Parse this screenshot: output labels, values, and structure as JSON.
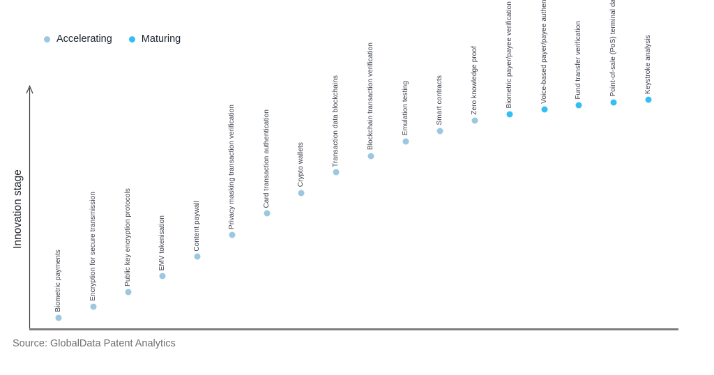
{
  "legend": {
    "items": [
      {
        "label": "Accelerating",
        "color": "#9cc7e0"
      },
      {
        "label": "Maturing",
        "color": "#33bff2"
      }
    ]
  },
  "source": {
    "text": "Source: GlobalData Patent Analytics"
  },
  "chart_data": {
    "type": "scatter",
    "title": "",
    "xlabel": "",
    "ylabel": "Innovation stage",
    "grid": false,
    "legend_position": "top-left",
    "x_axis": {
      "tick_labels_visible": false
    },
    "y_axis": {
      "min": 0,
      "max": 100,
      "tick_labels_visible": false,
      "arrow": true
    },
    "series_meta": [
      {
        "name": "Accelerating",
        "color": "#9cc7e0"
      },
      {
        "name": "Maturing",
        "color": "#33bff2"
      }
    ],
    "points": [
      {
        "label": "Biometric payments",
        "stage": 4.6,
        "series": "Accelerating"
      },
      {
        "label": "Encryption for secure transmission",
        "stage": 9.2,
        "series": "Accelerating"
      },
      {
        "label": "Public key encryption protocols",
        "stage": 15.2,
        "series": "Accelerating"
      },
      {
        "label": "EMV tokenisation",
        "stage": 21.8,
        "series": "Accelerating"
      },
      {
        "label": "Content paywall",
        "stage": 29.9,
        "series": "Accelerating"
      },
      {
        "label": "Privacy masking transaction verification",
        "stage": 38.8,
        "series": "Accelerating"
      },
      {
        "label": "Card transaction authentication",
        "stage": 47.7,
        "series": "Accelerating"
      },
      {
        "label": "Crypto wallets",
        "stage": 56.3,
        "series": "Accelerating"
      },
      {
        "label": "Transaction data blockchains",
        "stage": 64.7,
        "series": "Accelerating"
      },
      {
        "label": "Blockchain transaction verification",
        "stage": 71.6,
        "series": "Accelerating"
      },
      {
        "label": "Emulation testing",
        "stage": 77.6,
        "series": "Accelerating"
      },
      {
        "label": "Smart contracts",
        "stage": 81.9,
        "series": "Accelerating"
      },
      {
        "label": "Zero knowledge proof",
        "stage": 86.2,
        "series": "Accelerating"
      },
      {
        "label": "Biometric payer/payee verification",
        "stage": 88.8,
        "series": "Maturing"
      },
      {
        "label": "Voice-based payer/payee authentication",
        "stage": 90.8,
        "series": "Maturing"
      },
      {
        "label": "Fund transfer verification",
        "stage": 92.5,
        "series": "Maturing"
      },
      {
        "label": "Point-of-sale (PoS) terminal data security",
        "stage": 93.7,
        "series": "Maturing"
      },
      {
        "label": "Keystroke analysis",
        "stage": 94.8,
        "series": "Maturing"
      }
    ]
  }
}
